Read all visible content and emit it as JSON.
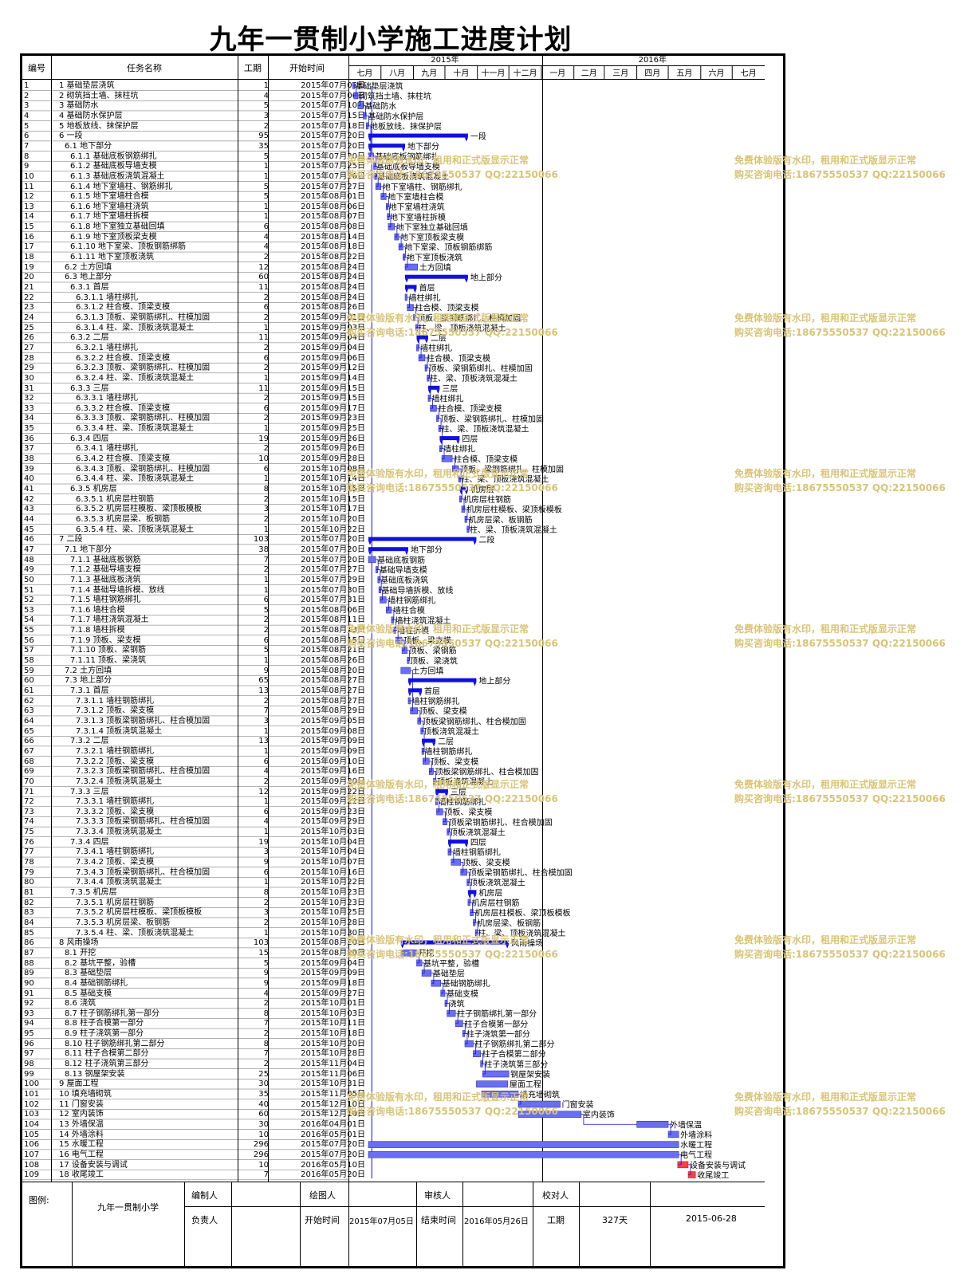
{
  "title": "九年一贯制小学施工进度计划",
  "header": {
    "id_label": "编号",
    "name_label": "任务名称",
    "dur_label": "工期",
    "start_label": "开始时间",
    "years": [
      "2015年",
      "2016年"
    ],
    "months": [
      "七月",
      "八月",
      "九月",
      "十月",
      "十一月",
      "十二月",
      "一月",
      "二月",
      "三月",
      "四月",
      "五月",
      "六月",
      "七月"
    ]
  },
  "watermark": {
    "line1": "免费体验版有水印，租用和正式版显示正常",
    "line2": "购买咨询电话:18675550537 QQ:22150066"
  },
  "footer": {
    "legend_label": "图例:",
    "project": "九年一贯制小学",
    "editor_label": "编制人",
    "drafter_label": "绘图人",
    "reviewer_label": "审核人",
    "checker_label": "校对人",
    "owner_label": "负责人",
    "start_label": "开始时间",
    "start_value": "2015年07月05日",
    "end_label": "结束时间",
    "end_value": "2016年05月26日",
    "duration_label": "工期",
    "duration_value": "327天",
    "date_value": "2015-06-28"
  },
  "colors": {
    "bar": "#6a6ef0",
    "summary": "#1010e0",
    "milestone": "#ff4040",
    "link": "#1010e0",
    "watermark": "#d8c476"
  },
  "chart_data": {
    "type": "gantt",
    "title": "九年一贯制小学施工进度计划",
    "x_range": [
      "2015-07-01",
      "2016-07-31"
    ],
    "rows": [
      {
        "id": "1",
        "name": "1 基础垫层浇筑",
        "dur": "1",
        "start": "2015年07月05日",
        "kind": "task"
      },
      {
        "id": "2",
        "name": "2 砌筑挡土墙、抹柱坑",
        "dur": "4",
        "start": "2015年07月06日",
        "kind": "task"
      },
      {
        "id": "3",
        "name": "3 基础防水",
        "dur": "5",
        "start": "2015年07月10日",
        "kind": "task"
      },
      {
        "id": "4",
        "name": "4 基础防水保护层",
        "dur": "3",
        "start": "2015年07月15日",
        "kind": "task"
      },
      {
        "id": "5",
        "name": "5 地板放线、抹保护层",
        "dur": "2",
        "start": "2015年07月18日",
        "kind": "task"
      },
      {
        "id": "6",
        "name": "6 一段",
        "dur": "95",
        "start": "2015年07月20日",
        "kind": "summary",
        "label": "一段"
      },
      {
        "id": "7",
        "name": "6.1 地下部分",
        "dur": "35",
        "start": "2015年07月20日",
        "kind": "summary",
        "label": "地下部分"
      },
      {
        "id": "8",
        "name": "6.1.1 基础底板钢筋绑扎",
        "dur": "5",
        "start": "2015年07月20日",
        "kind": "task"
      },
      {
        "id": "9",
        "name": "6.1.2 基础底板导墙支模",
        "dur": "1",
        "start": "2015年07月25日",
        "kind": "task"
      },
      {
        "id": "10",
        "name": "6.1.3 基础底板浇筑混凝土",
        "dur": "1",
        "start": "2015年07月26日",
        "kind": "task"
      },
      {
        "id": "11",
        "name": "6.1.4 地下室墙柱、钢筋绑扎",
        "dur": "5",
        "start": "2015年07月27日",
        "kind": "task"
      },
      {
        "id": "12",
        "name": "6.1.5 地下室墙柱合模",
        "dur": "5",
        "start": "2015年08月01日",
        "kind": "task"
      },
      {
        "id": "13",
        "name": "6.1.6 地下室墙柱浇筑",
        "dur": "1",
        "start": "2015年08月06日",
        "kind": "task"
      },
      {
        "id": "14",
        "name": "6.1.7 地下室墙柱拆模",
        "dur": "1",
        "start": "2015年08月07日",
        "kind": "task"
      },
      {
        "id": "15",
        "name": "6.1.8 地下室独立基础回填",
        "dur": "6",
        "start": "2015年08月08日",
        "kind": "task"
      },
      {
        "id": "16",
        "name": "6.1.9 地下室顶板梁支模",
        "dur": "4",
        "start": "2015年08月14日",
        "kind": "task"
      },
      {
        "id": "17",
        "name": "6.1.10 地下室梁、顶板钢筋绑筋",
        "dur": "4",
        "start": "2015年08月18日",
        "kind": "task"
      },
      {
        "id": "18",
        "name": "6.1.11 地下室顶板浇筑",
        "dur": "2",
        "start": "2015年08月22日",
        "kind": "task"
      },
      {
        "id": "19",
        "name": "6.2 土方回填",
        "dur": "12",
        "start": "2015年08月24日",
        "kind": "task"
      },
      {
        "id": "20",
        "name": "6.3 地上部分",
        "dur": "60",
        "start": "2015年08月24日",
        "kind": "summary",
        "label": "地上部分"
      },
      {
        "id": "21",
        "name": "6.3.1 首层",
        "dur": "11",
        "start": "2015年08月24日",
        "kind": "summary",
        "label": "首层"
      },
      {
        "id": "22",
        "name": "6.3.1.1 墙柱绑扎",
        "dur": "2",
        "start": "2015年08月24日",
        "kind": "task"
      },
      {
        "id": "23",
        "name": "6.3.1.2 柱合模、顶梁支模",
        "dur": "6",
        "start": "2015年08月26日",
        "kind": "task"
      },
      {
        "id": "24",
        "name": "6.3.1.3 顶板、梁钢筋绑扎、柱模加固",
        "dur": "2",
        "start": "2015年09月01日",
        "kind": "task"
      },
      {
        "id": "25",
        "name": "6.3.1.4 柱、梁、顶板浇筑混凝土",
        "dur": "1",
        "start": "2015年09月03日",
        "kind": "task"
      },
      {
        "id": "26",
        "name": "6.3.2 二层",
        "dur": "11",
        "start": "2015年09月04日",
        "kind": "summary",
        "label": "二层"
      },
      {
        "id": "27",
        "name": "6.3.2.1 墙柱绑扎",
        "dur": "2",
        "start": "2015年09月04日",
        "kind": "task"
      },
      {
        "id": "28",
        "name": "6.3.2.2 柱合模、顶梁支模",
        "dur": "6",
        "start": "2015年09月06日",
        "kind": "task"
      },
      {
        "id": "29",
        "name": "6.3.2.3 顶板、梁钢筋绑扎、柱模加固",
        "dur": "2",
        "start": "2015年09月12日",
        "kind": "task"
      },
      {
        "id": "30",
        "name": "6.3.2.4 柱、梁、顶板浇筑混凝土",
        "dur": "1",
        "start": "2015年09月14日",
        "kind": "task"
      },
      {
        "id": "31",
        "name": "6.3.3 三层",
        "dur": "11",
        "start": "2015年09月15日",
        "kind": "summary",
        "label": "三层"
      },
      {
        "id": "32",
        "name": "6.3.3.1 墙柱绑扎",
        "dur": "2",
        "start": "2015年09月15日",
        "kind": "task"
      },
      {
        "id": "33",
        "name": "6.3.3.2 柱合模、顶梁支模",
        "dur": "6",
        "start": "2015年09月17日",
        "kind": "task"
      },
      {
        "id": "34",
        "name": "6.3.3.3 顶板、梁钢筋绑扎、柱模加固",
        "dur": "2",
        "start": "2015年09月23日",
        "kind": "task"
      },
      {
        "id": "35",
        "name": "6.3.3.4 柱、梁、顶板浇筑混凝土",
        "dur": "1",
        "start": "2015年09月25日",
        "kind": "task"
      },
      {
        "id": "36",
        "name": "6.3.4 四层",
        "dur": "19",
        "start": "2015年09月26日",
        "kind": "summary",
        "label": "四层"
      },
      {
        "id": "37",
        "name": "6.3.4.1 墙柱绑扎",
        "dur": "2",
        "start": "2015年09月26日",
        "kind": "task"
      },
      {
        "id": "38",
        "name": "6.3.4.2 柱合模、顶梁支模",
        "dur": "10",
        "start": "2015年09月28日",
        "kind": "task"
      },
      {
        "id": "39",
        "name": "6.3.4.3 顶板、梁钢筋绑扎、柱模加固",
        "dur": "6",
        "start": "2015年10月08日",
        "kind": "task"
      },
      {
        "id": "40",
        "name": "6.3.4.4 柱、梁、顶板浇筑混凝土",
        "dur": "1",
        "start": "2015年10月14日",
        "kind": "task"
      },
      {
        "id": "41",
        "name": "6.3.5 机房层",
        "dur": "8",
        "start": "2015年10月15日",
        "kind": "summary",
        "label": "机房层"
      },
      {
        "id": "42",
        "name": "6.3.5.1 机房层柱钢筋",
        "dur": "2",
        "start": "2015年10月15日",
        "kind": "task"
      },
      {
        "id": "43",
        "name": "6.3.5.2 机房层柱模板、梁顶板模板",
        "dur": "3",
        "start": "2015年10月17日",
        "kind": "task"
      },
      {
        "id": "44",
        "name": "6.3.5.3 机房层梁、板钢筋",
        "dur": "2",
        "start": "2015年10月20日",
        "kind": "task"
      },
      {
        "id": "45",
        "name": "6.3.5.4 柱、梁、顶板浇筑混凝土",
        "dur": "1",
        "start": "2015年10月22日",
        "kind": "task"
      },
      {
        "id": "46",
        "name": "7 二段",
        "dur": "103",
        "start": "2015年07月20日",
        "kind": "summary",
        "label": "二段"
      },
      {
        "id": "47",
        "name": "7.1 地下部分",
        "dur": "38",
        "start": "2015年07月20日",
        "kind": "summary",
        "label": "地下部分"
      },
      {
        "id": "48",
        "name": "7.1.1 基础底板钢筋",
        "dur": "7",
        "start": "2015年07月20日",
        "kind": "task"
      },
      {
        "id": "49",
        "name": "7.1.2 基础导墙支模",
        "dur": "2",
        "start": "2015年07月27日",
        "kind": "task"
      },
      {
        "id": "50",
        "name": "7.1.3 基础底板浇筑",
        "dur": "1",
        "start": "2015年07月29日",
        "kind": "task"
      },
      {
        "id": "51",
        "name": "7.1.4 基础导墙拆模、放线",
        "dur": "1",
        "start": "2015年07月30日",
        "kind": "task"
      },
      {
        "id": "52",
        "name": "7.1.5 墙柱钢筋绑扎",
        "dur": "6",
        "start": "2015年07月31日",
        "kind": "task"
      },
      {
        "id": "53",
        "name": "7.1.6 墙柱合模",
        "dur": "5",
        "start": "2015年08月06日",
        "kind": "task"
      },
      {
        "id": "54",
        "name": "7.1.7 墙柱浇筑混凝土",
        "dur": "2",
        "start": "2015年08月11日",
        "kind": "task"
      },
      {
        "id": "55",
        "name": "7.1.8 墙柱拆模",
        "dur": "2",
        "start": "2015年08月13日",
        "kind": "task"
      },
      {
        "id": "56",
        "name": "7.1.9 顶板、梁支模",
        "dur": "6",
        "start": "2015年08月15日",
        "kind": "task"
      },
      {
        "id": "57",
        "name": "7.1.10 顶板、梁钢筋",
        "dur": "5",
        "start": "2015年08月21日",
        "kind": "task"
      },
      {
        "id": "58",
        "name": "7.1.11 顶板、梁浇筑",
        "dur": "1",
        "start": "2015年08月26日",
        "kind": "task"
      },
      {
        "id": "59",
        "name": "7.2 土方回填",
        "dur": "9",
        "start": "2015年08月20日",
        "kind": "task"
      },
      {
        "id": "60",
        "name": "7.3 地上部分",
        "dur": "65",
        "start": "2015年08月27日",
        "kind": "summary",
        "label": "地上部分"
      },
      {
        "id": "61",
        "name": "7.3.1 首层",
        "dur": "13",
        "start": "2015年08月27日",
        "kind": "summary",
        "label": "首层"
      },
      {
        "id": "62",
        "name": "7.3.1.1 墙柱钢筋绑扎",
        "dur": "2",
        "start": "2015年08月27日",
        "kind": "task"
      },
      {
        "id": "63",
        "name": "7.3.1.2 顶板、梁支模",
        "dur": "7",
        "start": "2015年08月29日",
        "kind": "task"
      },
      {
        "id": "64",
        "name": "7.3.1.3 顶板梁钢筋绑扎、柱合模加固",
        "dur": "3",
        "start": "2015年09月05日",
        "kind": "task"
      },
      {
        "id": "65",
        "name": "7.3.1.4 顶板浇筑混凝土",
        "dur": "1",
        "start": "2015年09月08日",
        "kind": "task"
      },
      {
        "id": "66",
        "name": "7.3.2 二层",
        "dur": "13",
        "start": "2015年09月09日",
        "kind": "summary",
        "label": "二层"
      },
      {
        "id": "67",
        "name": "7.3.2.1 墙柱钢筋绑扎",
        "dur": "1",
        "start": "2015年09月09日",
        "kind": "task"
      },
      {
        "id": "68",
        "name": "7.3.2.2 顶板、梁支模",
        "dur": "6",
        "start": "2015年09月10日",
        "kind": "task"
      },
      {
        "id": "69",
        "name": "7.3.2.3 顶板梁钢筋绑扎、柱合模加固",
        "dur": "4",
        "start": "2015年09月16日",
        "kind": "task"
      },
      {
        "id": "70",
        "name": "7.3.2.4 顶板浇筑混凝土",
        "dur": "2",
        "start": "2015年09月20日",
        "kind": "task"
      },
      {
        "id": "71",
        "name": "7.3.3 三层",
        "dur": "12",
        "start": "2015年09月22日",
        "kind": "summary",
        "label": "三层"
      },
      {
        "id": "72",
        "name": "7.3.3.1 墙柱钢筋绑扎",
        "dur": "1",
        "start": "2015年09月22日",
        "kind": "task"
      },
      {
        "id": "73",
        "name": "7.3.3.2 顶板、梁支模",
        "dur": "6",
        "start": "2015年09月23日",
        "kind": "task"
      },
      {
        "id": "74",
        "name": "7.3.3.3 顶板梁钢筋绑扎、柱合模加固",
        "dur": "4",
        "start": "2015年09月29日",
        "kind": "task"
      },
      {
        "id": "75",
        "name": "7.3.3.4 顶板浇筑混凝土",
        "dur": "1",
        "start": "2015年10月03日",
        "kind": "task"
      },
      {
        "id": "76",
        "name": "7.3.4 四层",
        "dur": "19",
        "start": "2015年10月04日",
        "kind": "summary",
        "label": "四层"
      },
      {
        "id": "77",
        "name": "7.3.4.1 墙柱钢筋绑扎",
        "dur": "3",
        "start": "2015年10月04日",
        "kind": "task"
      },
      {
        "id": "78",
        "name": "7.3.4.2 顶板、梁支模",
        "dur": "9",
        "start": "2015年10月07日",
        "kind": "task"
      },
      {
        "id": "79",
        "name": "7.3.4.3 顶板梁钢筋绑扎、柱合模加固",
        "dur": "6",
        "start": "2015年10月16日",
        "kind": "task"
      },
      {
        "id": "80",
        "name": "7.3.4.4 顶板浇筑混凝土",
        "dur": "1",
        "start": "2015年10月22日",
        "kind": "task"
      },
      {
        "id": "81",
        "name": "7.3.5 机房层",
        "dur": "8",
        "start": "2015年10月23日",
        "kind": "summary",
        "label": "机房层"
      },
      {
        "id": "82",
        "name": "7.3.5.1 机房层柱钢筋",
        "dur": "2",
        "start": "2015年10月23日",
        "kind": "task"
      },
      {
        "id": "83",
        "name": "7.3.5.2 机房层柱模板、梁顶板模板",
        "dur": "3",
        "start": "2015年10月25日",
        "kind": "task"
      },
      {
        "id": "84",
        "name": "7.3.5.3 机房层梁、板钢筋",
        "dur": "2",
        "start": "2015年10月28日",
        "kind": "task"
      },
      {
        "id": "85",
        "name": "7.3.5.4 柱、梁、顶板浇筑混凝土",
        "dur": "1",
        "start": "2015年10月30日",
        "kind": "task"
      },
      {
        "id": "86",
        "name": "8 风雨操场",
        "dur": "103",
        "start": "2015年08月20日",
        "kind": "summary",
        "label": "风雨操场"
      },
      {
        "id": "87",
        "name": "8.1 开挖",
        "dur": "15",
        "start": "2015年08月20日",
        "kind": "task"
      },
      {
        "id": "88",
        "name": "8.2 基坑平整，验槽",
        "dur": "5",
        "start": "2015年09月04日",
        "kind": "task"
      },
      {
        "id": "89",
        "name": "8.3 基础垫层",
        "dur": "9",
        "start": "2015年09月09日",
        "kind": "task"
      },
      {
        "id": "90",
        "name": "8.4 基础钢筋绑扎",
        "dur": "9",
        "start": "2015年09月18日",
        "kind": "task"
      },
      {
        "id": "91",
        "name": "8.5 基础支模",
        "dur": "4",
        "start": "2015年09月27日",
        "kind": "task"
      },
      {
        "id": "92",
        "name": "8.6 浇筑",
        "dur": "2",
        "start": "2015年10月01日",
        "kind": "task"
      },
      {
        "id": "93",
        "name": "8.7 柱子钢筋绑扎第一部分",
        "dur": "8",
        "start": "2015年10月03日",
        "kind": "task"
      },
      {
        "id": "94",
        "name": "8.8 柱子合模第一部分",
        "dur": "7",
        "start": "2015年10月11日",
        "kind": "task"
      },
      {
        "id": "95",
        "name": "8.9 柱子浇筑第一部分",
        "dur": "2",
        "start": "2015年10月18日",
        "kind": "task"
      },
      {
        "id": "96",
        "name": "8.10 柱子钢筋绑扎第二部分",
        "dur": "8",
        "start": "2015年10月20日",
        "kind": "task"
      },
      {
        "id": "97",
        "name": "8.11 柱子合模第二部分",
        "dur": "7",
        "start": "2015年10月28日",
        "kind": "task"
      },
      {
        "id": "98",
        "name": "8.12 柱子浇筑第三部分",
        "dur": "2",
        "start": "2015年11月04日",
        "kind": "task"
      },
      {
        "id": "99",
        "name": "8.13 钢屋架安装",
        "dur": "25",
        "start": "2015年11月06日",
        "kind": "task"
      },
      {
        "id": "100",
        "name": "9 屋面工程",
        "dur": "30",
        "start": "2015年10月31日",
        "kind": "task"
      },
      {
        "id": "101",
        "name": "10 填充墙砌筑",
        "dur": "35",
        "start": "2015年11月05日",
        "kind": "task"
      },
      {
        "id": "102",
        "name": "11 门窗安装",
        "dur": "40",
        "start": "2015年12月10日",
        "kind": "task"
      },
      {
        "id": "103",
        "name": "12 室内装饰",
        "dur": "60",
        "start": "2015年12月10日",
        "kind": "task"
      },
      {
        "id": "104",
        "name": "13 外墙保温",
        "dur": "30",
        "start": "2016年04月01日",
        "kind": "task"
      },
      {
        "id": "105",
        "name": "14 外墙涂料",
        "dur": "10",
        "start": "2016年05月01日",
        "kind": "task"
      },
      {
        "id": "106",
        "name": "15 水暖工程",
        "dur": "296",
        "start": "2015年07月20日",
        "kind": "task"
      },
      {
        "id": "107",
        "name": "16 电气工程",
        "dur": "296",
        "start": "2015年07月20日",
        "kind": "task"
      },
      {
        "id": "108",
        "name": "17 设备安装与调试",
        "dur": "10",
        "start": "2016年05月10日",
        "kind": "milestone"
      },
      {
        "id": "109",
        "name": "18 收尾竣工",
        "dur": "7",
        "start": "2016年05月20日",
        "kind": "milestone"
      }
    ]
  }
}
